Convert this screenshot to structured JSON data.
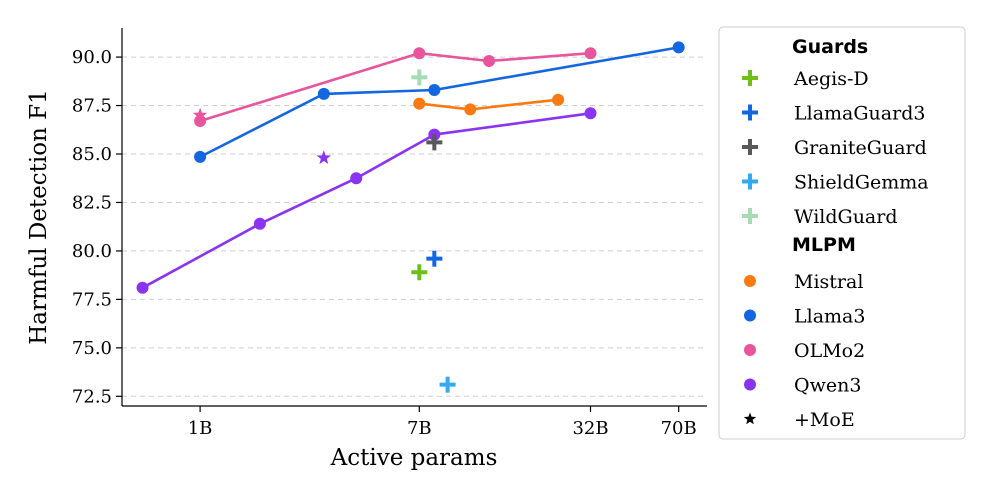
{
  "chart_data": {
    "type": "line",
    "ylabel": "Harmful Detection F1",
    "xlabel": "Active params",
    "x_scale": "log",
    "xlim": [
      0.5,
      90
    ],
    "ylim": [
      72.0,
      91.5
    ],
    "x_ticks": [
      {
        "value": 1,
        "label": "1B"
      },
      {
        "value": 7,
        "label": "7B"
      },
      {
        "value": 32,
        "label": "32B"
      },
      {
        "value": 70,
        "label": "70B"
      }
    ],
    "y_ticks": [
      {
        "value": 72.5,
        "label": "72.5"
      },
      {
        "value": 75.0,
        "label": "75.0"
      },
      {
        "value": 77.5,
        "label": "77.5"
      },
      {
        "value": 80.0,
        "label": "80.0"
      },
      {
        "value": 82.5,
        "label": "82.5"
      },
      {
        "value": 85.0,
        "label": "85.0"
      },
      {
        "value": 87.5,
        "label": "87.5"
      },
      {
        "value": 90.0,
        "label": "90.0"
      }
    ],
    "grid": "horizontal dashed",
    "legend_position": "outside right",
    "mlpm_series": [
      {
        "name": "Mistral",
        "color": "#f97a12",
        "points": [
          {
            "x": 7,
            "y": 87.6
          },
          {
            "x": 11,
            "y": 87.3
          },
          {
            "x": 24,
            "y": 87.8
          }
        ]
      },
      {
        "name": "Llama3",
        "color": "#1266e0",
        "points": [
          {
            "x": 1,
            "y": 84.85
          },
          {
            "x": 3,
            "y": 88.1
          },
          {
            "x": 8,
            "y": 88.3
          },
          {
            "x": 70,
            "y": 90.5
          }
        ]
      },
      {
        "name": "OLMo2",
        "color": "#e8559d",
        "points": [
          {
            "x": 1,
            "y": 86.7
          },
          {
            "x": 7,
            "y": 90.2
          },
          {
            "x": 13,
            "y": 89.8
          },
          {
            "x": 32,
            "y": 90.2
          }
        ]
      },
      {
        "name": "Qwen3",
        "color": "#8a33f0",
        "points": [
          {
            "x": 0.6,
            "y": 78.1
          },
          {
            "x": 1.7,
            "y": 81.4
          },
          {
            "x": 4,
            "y": 83.75
          },
          {
            "x": 8,
            "y": 86.0
          },
          {
            "x": 32,
            "y": 87.1
          }
        ]
      }
    ],
    "moe_points": [
      {
        "name": "OLMo2",
        "color": "#e8559d",
        "x": 1,
        "y": 87.0
      },
      {
        "name": "Qwen3",
        "color": "#8a33f0",
        "x": 3,
        "y": 84.8
      }
    ],
    "guard_points": [
      {
        "name": "Aegis-D",
        "color": "#6fbf1a",
        "x": 7,
        "y": 78.9
      },
      {
        "name": "LlamaGuard3",
        "color": "#1266e0",
        "x": 8,
        "y": 79.6
      },
      {
        "name": "GraniteGuard",
        "color": "#595959",
        "x": 8,
        "y": 85.6
      },
      {
        "name": "ShieldGemma",
        "color": "#35aaf2",
        "x": 9,
        "y": 73.1
      },
      {
        "name": "WildGuard",
        "color": "#a6dcb5",
        "x": 7,
        "y": 88.95
      }
    ],
    "legend": {
      "guards_title": "Guards",
      "guards": [
        {
          "label": "Aegis-D",
          "color": "#6fbf1a"
        },
        {
          "label": "LlamaGuard3",
          "color": "#1266e0"
        },
        {
          "label": "GraniteGuard",
          "color": "#595959"
        },
        {
          "label": "ShieldGemma",
          "color": "#35aaf2"
        },
        {
          "label": "WildGuard",
          "color": "#a6dcb5"
        }
      ],
      "mlpm_title": "MLPM",
      "mlpm": [
        {
          "label": "Mistral",
          "color": "#f97a12"
        },
        {
          "label": "Llama3",
          "color": "#1266e0"
        },
        {
          "label": "OLMo2",
          "color": "#e8559d"
        },
        {
          "label": "Qwen3",
          "color": "#8a33f0"
        }
      ],
      "moe_label": "+MoE",
      "moe_color": "#000000"
    }
  }
}
